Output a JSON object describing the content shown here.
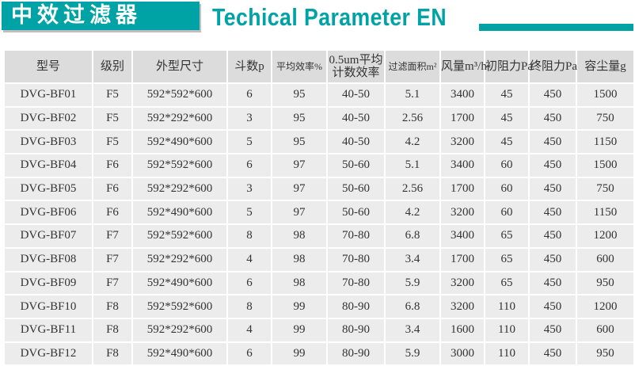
{
  "header": {
    "title": "中效过滤器",
    "subtitle": "Techical Parameter EN",
    "accent_color": "#00a3a5"
  },
  "table": {
    "columns": [
      "型号",
      "级别",
      "外型尺寸",
      "斗数p",
      "平均效率%",
      "0.5um平均计数效率",
      "过滤面积m²",
      "风量m³/h",
      "初阻力Pa",
      "终阻力Pa",
      "容尘量g"
    ],
    "rows": [
      [
        "DVG-BF01",
        "F5",
        "592*592*600",
        "6",
        "95",
        "40-50",
        "5.1",
        "3400",
        "45",
        "450",
        "1500"
      ],
      [
        "DVG-BF02",
        "F5",
        "592*292*600",
        "3",
        "95",
        "40-50",
        "2.56",
        "1700",
        "45",
        "450",
        "750"
      ],
      [
        "DVG-BF03",
        "F5",
        "592*490*600",
        "5",
        "95",
        "40-50",
        "4.2",
        "3200",
        "45",
        "450",
        "1150"
      ],
      [
        "DVG-BF04",
        "F6",
        "592*592*600",
        "6",
        "97",
        "50-60",
        "5.1",
        "3400",
        "60",
        "450",
        "1500"
      ],
      [
        "DVG-BF05",
        "F6",
        "592*292*600",
        "3",
        "97",
        "50-60",
        "2.56",
        "1700",
        "60",
        "450",
        "750"
      ],
      [
        "DVG-BF06",
        "F6",
        "592*490*600",
        "5",
        "97",
        "50-60",
        "4.2",
        "3200",
        "60",
        "450",
        "1150"
      ],
      [
        "DVG-BF07",
        "F7",
        "592*592*600",
        "8",
        "98",
        "70-80",
        "6.8",
        "3400",
        "65",
        "450",
        "1200"
      ],
      [
        "DVG-BF08",
        "F7",
        "592*292*600",
        "4",
        "98",
        "70-80",
        "3.4",
        "1700",
        "65",
        "450",
        "600"
      ],
      [
        "DVG-BF09",
        "F7",
        "592*490*600",
        "6",
        "98",
        "70-80",
        "5.9",
        "3200",
        "65",
        "450",
        "950"
      ],
      [
        "DVG-BF10",
        "F8",
        "592*592*600",
        "8",
        "99",
        "80-90",
        "6.8",
        "3200",
        "110",
        "450",
        "1200"
      ],
      [
        "DVG-BF11",
        "F8",
        "592*292*600",
        "4",
        "99",
        "80-90",
        "3.4",
        "1600",
        "110",
        "450",
        "600"
      ],
      [
        "DVG-BF12",
        "F8",
        "592*490*600",
        "6",
        "99",
        "80-90",
        "5.9",
        "3000",
        "110",
        "450",
        "950"
      ]
    ]
  }
}
